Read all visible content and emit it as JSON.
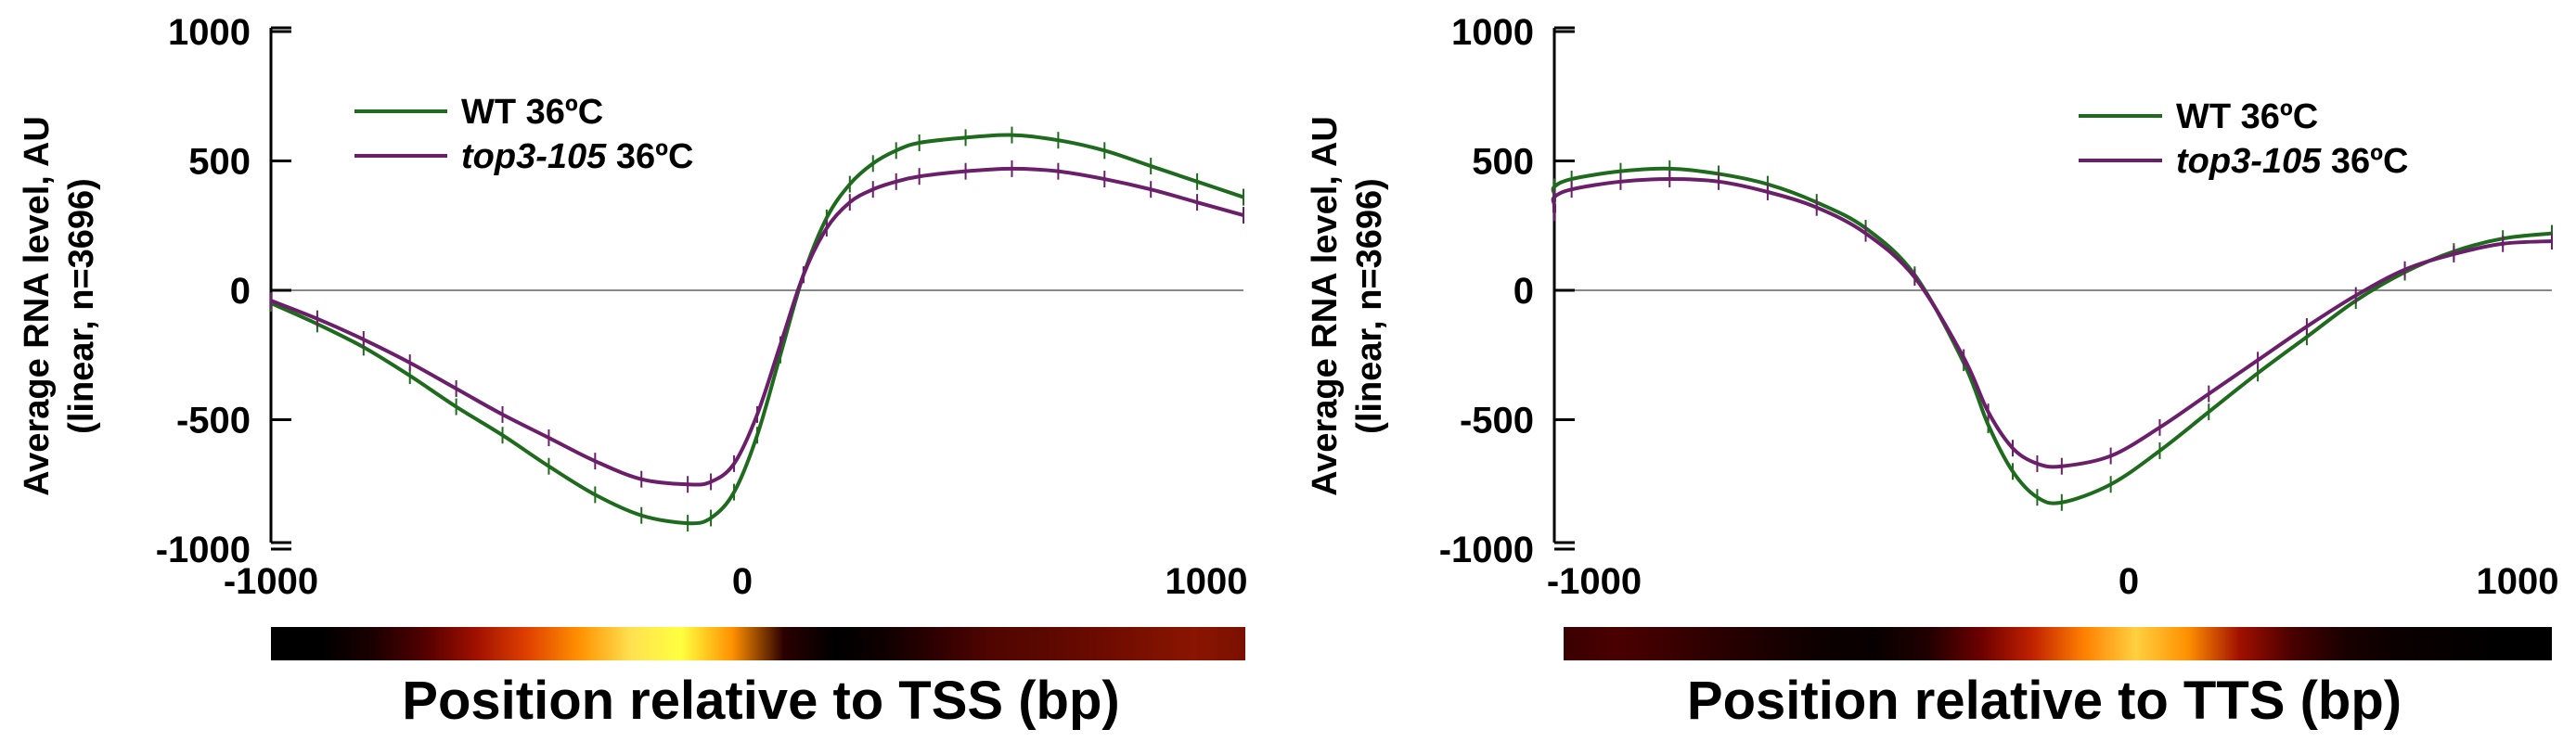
{
  "chart_data": [
    {
      "type": "line",
      "xlabel": "Position relative to TSS (bp)",
      "ylabel_line1": "Average RNA level, AU",
      "ylabel_line2": "(linear, n=3696)",
      "xlim": [
        -1000,
        1100
      ],
      "ylim": [
        -1100,
        1100
      ],
      "xticks": [
        "-1000",
        "0",
        "1000"
      ],
      "yticks": [
        "1000",
        "500",
        "0",
        "-500",
        "-1000"
      ],
      "legend_position": "top-left",
      "colors": {
        "WT": "#1e6b1e",
        "top3": "#6b1f6b"
      },
      "x": [
        -1000,
        -900,
        -800,
        -700,
        -600,
        -500,
        -400,
        -300,
        -200,
        -100,
        -50,
        0,
        50,
        100,
        150,
        200,
        250,
        300,
        350,
        400,
        500,
        600,
        700,
        800,
        900,
        1000,
        1100
      ],
      "series": [
        {
          "legend_prefix": "WT",
          "legend_italic": "",
          "legend_suffix": "WT 36ºC",
          "values": [
            -50,
            -130,
            -220,
            -330,
            -450,
            -560,
            -680,
            -790,
            -870,
            -900,
            -880,
            -780,
            -560,
            -250,
            60,
            280,
            410,
            490,
            540,
            570,
            590,
            600,
            580,
            540,
            480,
            420,
            360
          ]
        },
        {
          "legend_prefix": "",
          "legend_italic": "top3-105",
          "legend_suffix": " 36ºC",
          "values": [
            -40,
            -110,
            -190,
            -280,
            -380,
            -480,
            -570,
            -660,
            -730,
            -750,
            -740,
            -670,
            -480,
            -210,
            60,
            240,
            340,
            390,
            420,
            440,
            460,
            470,
            460,
            430,
            390,
            340,
            290
          ]
        }
      ],
      "colorbar": [
        "#000000",
        "#000000",
        "#1c0000",
        "#520000",
        "#a01000",
        "#e04000",
        "#ff9000",
        "#ffe050",
        "#ffff40",
        "#ff9000",
        "#2a0000",
        "#000000",
        "#100000",
        "#300000",
        "#500500",
        "#5a0800",
        "#6a0a00",
        "#7a1000",
        "#8a1500",
        "#7a1000"
      ]
    },
    {
      "type": "line",
      "xlabel": "Position relative to TTS (bp)",
      "ylabel_line1": "Average RNA level, AU",
      "ylabel_line2": "(linear, n=3696)",
      "xlim": [
        -1100,
        1100
      ],
      "ylim": [
        -1100,
        1100
      ],
      "xticks": [
        "-1000",
        "0",
        "1000"
      ],
      "yticks": [
        "1000",
        "500",
        "0",
        "-500",
        "-1000"
      ],
      "legend_position": "top-right",
      "colors": {
        "WT": "#1e6b1e",
        "top3": "#6b1f6b"
      },
      "x": [
        -1250,
        -1100,
        -1000,
        -900,
        -800,
        -700,
        -600,
        -500,
        -400,
        -300,
        -200,
        -100,
        -50,
        0,
        50,
        100,
        200,
        300,
        400,
        500,
        600,
        700,
        800,
        900,
        1000,
        1100
      ],
      "series": [
        {
          "legend_prefix": "WT",
          "legend_italic": "",
          "legend_suffix": "WT 36ºC",
          "values": [
            340,
            370,
            400,
            430,
            460,
            470,
            450,
            410,
            340,
            240,
            60,
            -280,
            -520,
            -700,
            -800,
            -820,
            -750,
            -620,
            -470,
            -320,
            -180,
            -40,
            70,
            150,
            200,
            220
          ]
        },
        {
          "legend_prefix": "",
          "legend_italic": "top3-105",
          "legend_suffix": " 36ºC",
          "values": [
            300,
            330,
            360,
            390,
            420,
            430,
            420,
            380,
            320,
            220,
            50,
            -260,
            -470,
            -610,
            -670,
            -680,
            -640,
            -530,
            -400,
            -270,
            -140,
            -20,
            80,
            140,
            180,
            190
          ]
        }
      ],
      "colorbar": [
        "#3a0000",
        "#4a0000",
        "#3c0000",
        "#2a0000",
        "#1a0000",
        "#0c0000",
        "#080000",
        "#200000",
        "#6a0000",
        "#c02000",
        "#ff8000",
        "#ffd040",
        "#ff9000",
        "#a01000",
        "#4a0000",
        "#1a0000",
        "#0a0000",
        "#060000",
        "#000000",
        "#000000"
      ]
    }
  ]
}
